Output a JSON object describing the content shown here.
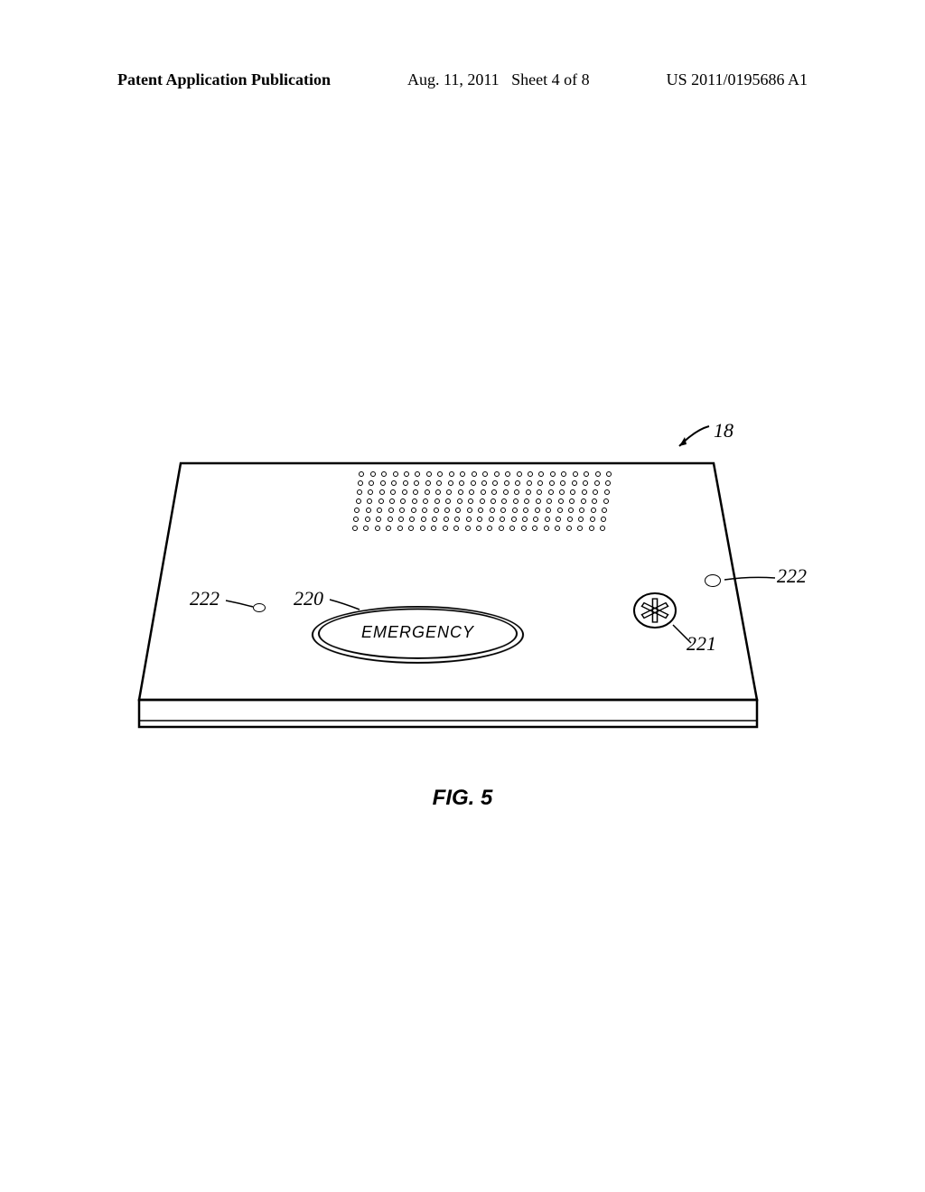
{
  "header": {
    "left": "Patent Application Publication",
    "date": "Aug. 11, 2011",
    "sheet": "Sheet 4 of 8",
    "pubnum": "US 2011/0195686 A1"
  },
  "figure": {
    "caption": "FIG. 5",
    "device_ref": "18",
    "emergency_label": "EMERGENCY",
    "callouts": {
      "emergency_btn": "220",
      "medical_symbol": "221",
      "indicator": "222"
    },
    "speaker": {
      "rows": 7,
      "cols": 23
    },
    "colors": {
      "stroke": "#000000",
      "background": "#ffffff"
    }
  }
}
